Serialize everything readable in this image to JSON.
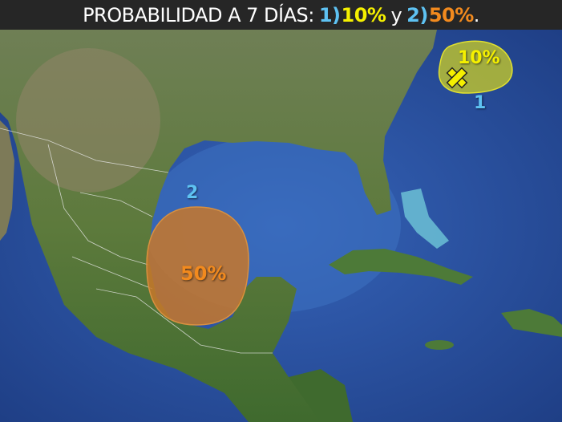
{
  "header": {
    "title": "PROBABILIDAD A 7 DÍAS:",
    "area1_num": "1)",
    "area1_pct": "10%",
    "conj": "y",
    "area2_num": "2)",
    "area2_pct": "50%",
    "period": "."
  },
  "areas": [
    {
      "id": "1",
      "label": "1",
      "probability": "10%",
      "color": "#d8d81e",
      "marker": "x-icon"
    },
    {
      "id": "2",
      "label": "2",
      "probability": "50%",
      "color": "#c8782a"
    }
  ],
  "colors": {
    "ocean": "#2a4f9a",
    "land": "#5b7a3a",
    "label_blue": "#5ec2f2",
    "yellow": "#f5f000",
    "orange": "#f28a1e"
  }
}
